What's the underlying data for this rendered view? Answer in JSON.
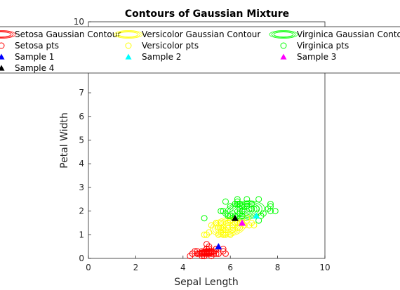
{
  "chart_data": {
    "type": "scatter",
    "title": "Contours of Gaussian Mixture",
    "xlabel": "Sepal Length",
    "ylabel": "Petal Width",
    "xlim": [
      0,
      10
    ],
    "ylim": [
      0,
      10
    ],
    "xticks": [
      "0",
      "2",
      "4",
      "6",
      "8",
      "10"
    ],
    "yticks": [
      "0",
      "1",
      "2",
      "3",
      "4",
      "5",
      "6",
      "7",
      "10"
    ],
    "grid": false,
    "legend_position": "top, inside axes, 3 columns",
    "contours": [
      {
        "name": "Setosa Gaussian Contour",
        "color": "#ff0000",
        "center": [
          5.0,
          0.25
        ],
        "semi_axes": [
          0.5,
          0.15
        ],
        "levels": 8
      },
      {
        "name": "Versicolor Gaussian Contour",
        "color": "#ffff00",
        "center": [
          5.9,
          1.33
        ],
        "semi_axes": [
          0.75,
          0.4
        ],
        "levels": 8
      },
      {
        "name": "Virginica Gaussian Contour",
        "color": "#00ff00",
        "center": [
          6.6,
          2.02
        ],
        "semi_axes": [
          0.85,
          0.4
        ],
        "levels": 8
      }
    ],
    "series": [
      {
        "name": "Setosa pts",
        "marker": "circle-open",
        "color": "#ff0000",
        "x": [
          4.3,
          4.4,
          4.4,
          4.5,
          4.6,
          4.6,
          4.7,
          4.8,
          4.8,
          4.8,
          4.9,
          4.9,
          5.0,
          5.0,
          5.0,
          5.0,
          5.1,
          5.1,
          5.1,
          5.2,
          5.2,
          5.3,
          5.4,
          5.4,
          5.4,
          5.5,
          5.5,
          5.7,
          5.7,
          5.8,
          4.6,
          5.0,
          5.1,
          4.9,
          5.0
        ],
        "y": [
          0.1,
          0.2,
          0.2,
          0.3,
          0.2,
          0.3,
          0.2,
          0.1,
          0.2,
          0.3,
          0.1,
          0.2,
          0.2,
          0.3,
          0.4,
          0.6,
          0.2,
          0.3,
          0.4,
          0.1,
          0.2,
          0.2,
          0.2,
          0.4,
          0.4,
          0.2,
          0.2,
          0.3,
          0.4,
          0.2,
          0.2,
          0.3,
          0.5,
          0.1,
          0.4
        ]
      },
      {
        "name": "Versicolor pts",
        "marker": "circle-open",
        "color": "#ffff00",
        "x": [
          4.9,
          5.0,
          5.2,
          5.5,
          5.5,
          5.6,
          5.6,
          5.7,
          5.7,
          5.8,
          5.8,
          5.9,
          6.0,
          6.0,
          6.1,
          6.1,
          6.2,
          6.3,
          6.3,
          6.4,
          6.5,
          6.6,
          6.7,
          6.8,
          6.9,
          7.0,
          5.6,
          5.7,
          6.1,
          6.4,
          5.4,
          5.1,
          6.0
        ],
        "y": [
          1.0,
          1.0,
          1.4,
          1.0,
          1.3,
          1.1,
          1.3,
          1.2,
          1.3,
          1.0,
          1.2,
          1.5,
          1.0,
          1.6,
          1.2,
          1.4,
          1.5,
          1.3,
          1.5,
          1.3,
          1.5,
          1.4,
          1.7,
          1.4,
          1.5,
          1.4,
          1.5,
          1.0,
          1.3,
          1.5,
          1.5,
          1.1,
          1.6
        ]
      },
      {
        "name": "Virginica pts",
        "marker": "circle-open",
        "color": "#00ff00",
        "x": [
          4.9,
          5.6,
          5.7,
          5.8,
          5.8,
          6.0,
          6.0,
          6.1,
          6.2,
          6.3,
          6.3,
          6.3,
          6.4,
          6.4,
          6.4,
          6.5,
          6.5,
          6.5,
          6.7,
          6.7,
          6.8,
          6.9,
          6.9,
          7.1,
          7.2,
          7.2,
          7.3,
          7.4,
          7.6,
          7.7,
          7.7,
          7.7,
          7.9,
          6.3,
          6.7,
          5.9,
          6.2
        ],
        "y": [
          1.7,
          2.0,
          2.0,
          1.9,
          2.4,
          1.8,
          2.2,
          1.9,
          1.8,
          1.8,
          2.4,
          2.5,
          1.9,
          2.1,
          2.3,
          2.0,
          2.2,
          1.8,
          2.3,
          2.5,
          2.1,
          2.3,
          2.1,
          2.1,
          1.6,
          2.5,
          1.8,
          1.9,
          2.1,
          2.0,
          2.2,
          2.3,
          2.0,
          2.3,
          2.2,
          1.8,
          2.3
        ]
      },
      {
        "name": "Sample 1",
        "marker": "triangle-filled",
        "color": "#0000ff",
        "x": [
          5.5
        ],
        "y": [
          0.5
        ]
      },
      {
        "name": "Sample 2",
        "marker": "triangle-filled",
        "color": "#00ffff",
        "x": [
          7.1
        ],
        "y": [
          1.8
        ]
      },
      {
        "name": "Sample 3",
        "marker": "triangle-filled",
        "color": "#ff00ff",
        "x": [
          6.5
        ],
        "y": [
          1.5
        ]
      },
      {
        "name": "Sample 4",
        "marker": "triangle-filled",
        "color": "#000000",
        "x": [
          6.2
        ],
        "y": [
          1.7
        ]
      }
    ],
    "legend": [
      {
        "label": "Setosa Gaussian Contour",
        "kind": "contour",
        "color": "#ff0000"
      },
      {
        "label": "Versicolor Gaussian Contour",
        "kind": "contour",
        "color": "#ffff00"
      },
      {
        "label": "Virginica Gaussian Contour",
        "kind": "contour",
        "color": "#00ff00"
      },
      {
        "label": "Setosa pts",
        "kind": "circle",
        "color": "#ff0000"
      },
      {
        "label": "Versicolor pts",
        "kind": "circle",
        "color": "#ffff00"
      },
      {
        "label": "Virginica pts",
        "kind": "circle",
        "color": "#00ff00"
      },
      {
        "label": "Sample 1",
        "kind": "triangle",
        "color": "#0000ff"
      },
      {
        "label": "Sample 2",
        "kind": "triangle",
        "color": "#00ffff"
      },
      {
        "label": "Sample 3",
        "kind": "triangle",
        "color": "#ff00ff"
      },
      {
        "label": "Sample 4",
        "kind": "triangle",
        "color": "#000000"
      }
    ]
  }
}
